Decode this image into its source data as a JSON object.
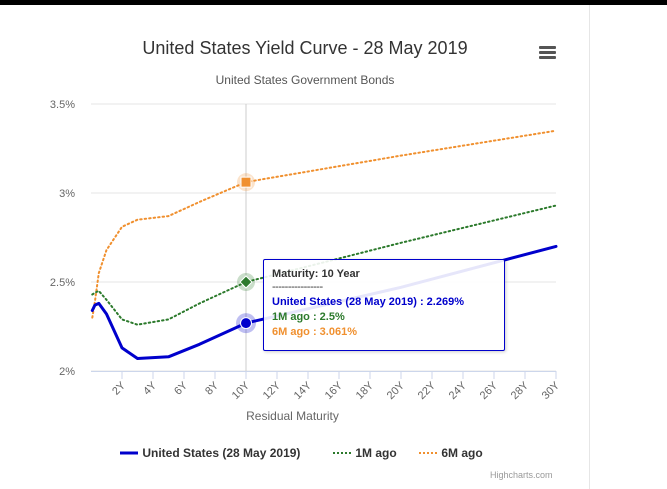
{
  "chart_data": {
    "type": "line",
    "title": "United States Yield Curve - 28 May 2019",
    "subtitle": "United States Government Bonds",
    "xlabel": "Residual Maturity",
    "ylabel": "",
    "xlim": [
      0,
      30
    ],
    "ylim": [
      2.0,
      3.5
    ],
    "x_ticks": [
      "2Y",
      "4Y",
      "6Y",
      "8Y",
      "10Y",
      "12Y",
      "14Y",
      "16Y",
      "18Y",
      "20Y",
      "22Y",
      "24Y",
      "26Y",
      "28Y",
      "30Y"
    ],
    "x_tick_values": [
      2,
      4,
      6,
      8,
      10,
      12,
      14,
      16,
      18,
      20,
      22,
      24,
      26,
      28,
      30
    ],
    "y_ticks": [
      "2%",
      "2.5%",
      "3%",
      "3.5%"
    ],
    "y_tick_values": [
      2.0,
      2.5,
      3.0,
      3.5
    ],
    "series": [
      {
        "name": "United States (28 May 2019)",
        "color": "#0000cc",
        "style": "solid",
        "x": [
          0.083,
          0.25,
          0.5,
          1,
          2,
          3,
          5,
          7,
          10,
          20,
          30
        ],
        "values": [
          2.34,
          2.37,
          2.38,
          2.32,
          2.13,
          2.07,
          2.08,
          2.15,
          2.269,
          2.47,
          2.7
        ]
      },
      {
        "name": "1M ago",
        "color": "#2c7a2c",
        "style": "dotted",
        "x": [
          0.083,
          0.25,
          0.5,
          1,
          2,
          3,
          5,
          7,
          10,
          20,
          30
        ],
        "values": [
          2.43,
          2.44,
          2.45,
          2.4,
          2.29,
          2.26,
          2.29,
          2.38,
          2.5,
          2.72,
          2.93
        ]
      },
      {
        "name": "6M ago",
        "color": "#f0902f",
        "style": "dotted",
        "x": [
          0.083,
          0.25,
          0.5,
          1,
          2,
          3,
          5,
          7,
          10,
          20,
          30
        ],
        "values": [
          2.3,
          2.39,
          2.55,
          2.68,
          2.81,
          2.85,
          2.87,
          2.95,
          3.061,
          3.21,
          3.35
        ]
      }
    ],
    "crosshair_x": 10
  },
  "tooltip": {
    "heading": "Maturity: 10 Year",
    "separator": "----------------",
    "line_us": "United States (28 May 2019) : 2.269%",
    "line_1m": "1M ago : 2.5%",
    "line_6m": "6M ago : 3.061%"
  },
  "legend": {
    "items": [
      {
        "label": "United States (28 May 2019)"
      },
      {
        "label": "1M ago"
      },
      {
        "label": "6M ago"
      }
    ]
  },
  "credits": "Highcharts.com",
  "menu": {
    "icon": "hamburger-menu-icon"
  }
}
